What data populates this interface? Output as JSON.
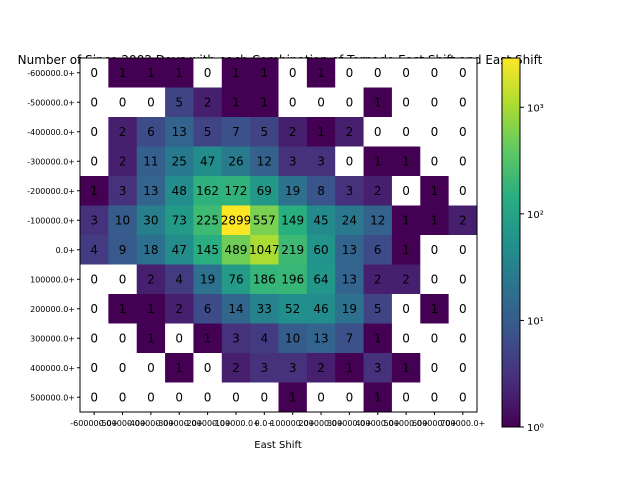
{
  "chart_data": {
    "type": "heatmap",
    "title": "Number of Since 2002 Days with each Combination of Tornado East Shift and East Shift",
    "xlabel": "East Shift",
    "ylabel": "",
    "x_categories": [
      "-600000.0+",
      "-500000.0+",
      "-400000.0+",
      "-300000.0+",
      "-200000.0+",
      "-100000.0+",
      "0.0+",
      "100000.0+",
      "200000.0+",
      "300000.0+",
      "400000.0+",
      "500000.0+",
      "600000.0+",
      "700000.0+"
    ],
    "y_categories": [
      "-600000.0+",
      "-500000.0+",
      "-400000.0+",
      "-300000.0+",
      "-200000.0+",
      "-100000.0+",
      "0.0+",
      "100000.0+",
      "200000.0+",
      "300000.0+",
      "400000.0+",
      "500000.0+"
    ],
    "values": [
      [
        0,
        1,
        1,
        1,
        0,
        1,
        1,
        0,
        1,
        0,
        0,
        0,
        0,
        0
      ],
      [
        0,
        0,
        0,
        5,
        2,
        1,
        1,
        0,
        0,
        0,
        1,
        0,
        0,
        0
      ],
      [
        0,
        2,
        6,
        13,
        5,
        7,
        5,
        2,
        1,
        2,
        0,
        0,
        0,
        0
      ],
      [
        0,
        2,
        11,
        25,
        47,
        26,
        12,
        3,
        3,
        0,
        1,
        1,
        0,
        0
      ],
      [
        1,
        3,
        13,
        48,
        162,
        172,
        69,
        19,
        8,
        3,
        2,
        0,
        1,
        0
      ],
      [
        3,
        10,
        30,
        73,
        225,
        2899,
        557,
        149,
        45,
        24,
        12,
        1,
        1,
        2
      ],
      [
        4,
        9,
        18,
        47,
        145,
        489,
        1047,
        219,
        60,
        13,
        6,
        1,
        0,
        0
      ],
      [
        0,
        0,
        2,
        4,
        19,
        76,
        186,
        196,
        64,
        13,
        2,
        2,
        0,
        0
      ],
      [
        0,
        1,
        1,
        2,
        6,
        14,
        33,
        52,
        46,
        19,
        5,
        0,
        1,
        0
      ],
      [
        0,
        0,
        1,
        0,
        1,
        3,
        4,
        10,
        13,
        7,
        1,
        0,
        0,
        0
      ],
      [
        0,
        0,
        0,
        1,
        0,
        2,
        3,
        3,
        2,
        1,
        3,
        1,
        0,
        0
      ],
      [
        0,
        0,
        0,
        0,
        0,
        0,
        0,
        1,
        0,
        0,
        1,
        0,
        0,
        0
      ]
    ],
    "colorbar": {
      "scale": "log",
      "colormap": "viridis",
      "min": 1,
      "max": 2899,
      "ticks": [
        {
          "value": 1,
          "label": "10⁰"
        },
        {
          "value": 10,
          "label": "10¹"
        },
        {
          "value": 100,
          "label": "10²"
        },
        {
          "value": 1000,
          "label": "10³"
        }
      ]
    },
    "zero_color": "#ffffff",
    "grid": false
  }
}
